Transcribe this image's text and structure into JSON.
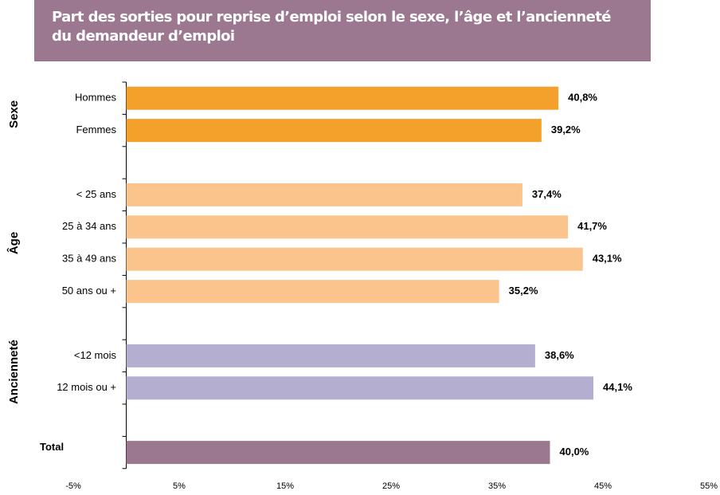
{
  "chart_data": {
    "type": "grouped-hbar",
    "title": "Part des sorties pour reprise d’emploi selon le sexe, l’âge et l’ancienneté du demandeur d’emploi",
    "groups": [
      {
        "name": "Sexe",
        "color": "#f4a12c",
        "categories": [
          "Hommes",
          "Femmes"
        ],
        "values": [
          40.8,
          39.2
        ],
        "value_labels": [
          "40,8%",
          "39,2%"
        ]
      },
      {
        "name": "Âge",
        "color": "#fbc48c",
        "categories": [
          "< 25 ans",
          "25 à 34 ans",
          "35 à 49 ans",
          "50 ans ou +"
        ],
        "values": [
          37.4,
          41.7,
          43.1,
          35.2
        ],
        "value_labels": [
          "37,4%",
          "41,7%",
          "43,1%",
          "35,2%"
        ]
      },
      {
        "name": "Ancienneté",
        "color": "#b4aed0",
        "categories": [
          "<12 mois",
          "12 mois ou +"
        ],
        "values": [
          38.6,
          44.1
        ],
        "value_labels": [
          "38,6%",
          "44,1%"
        ]
      },
      {
        "name": "Total",
        "color": "#9c7890",
        "categories": [
          null
        ],
        "values": [
          40.0
        ],
        "value_labels": [
          "40,0%"
        ]
      }
    ],
    "xlim": [
      -5,
      55
    ],
    "xticks": [
      {
        "value": -5,
        "label": "-5%"
      },
      {
        "value": 5,
        "label": "5%"
      },
      {
        "value": 15,
        "label": "15%"
      },
      {
        "value": 25,
        "label": "25%"
      },
      {
        "value": 35,
        "label": "35%"
      },
      {
        "value": 45,
        "label": "45%"
      },
      {
        "value": 55,
        "label": "55%"
      }
    ]
  }
}
